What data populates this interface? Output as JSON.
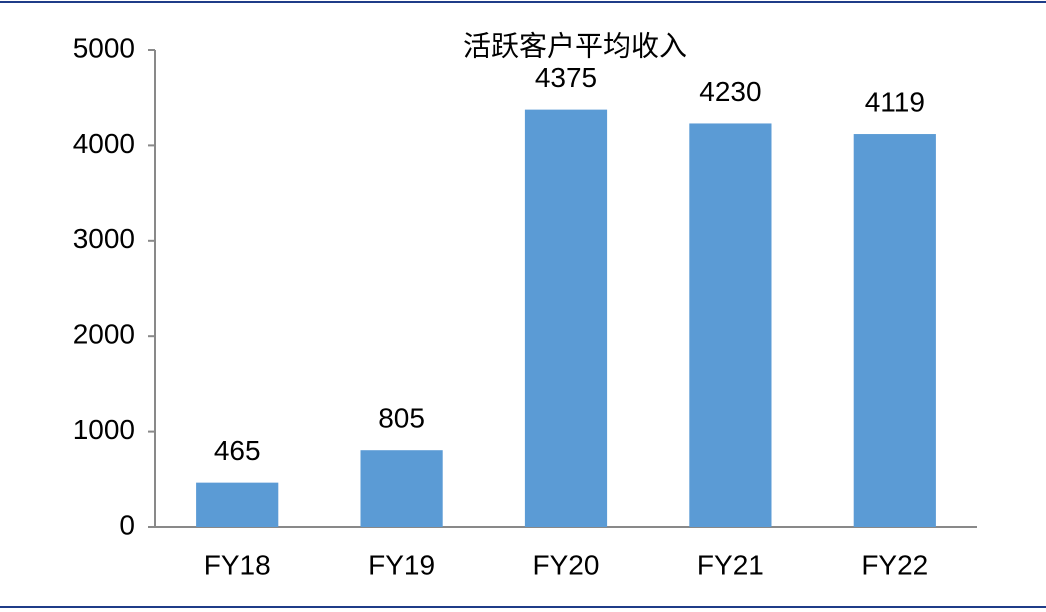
{
  "chart_data": {
    "type": "bar",
    "title": "活跃客户平均收入",
    "categories": [
      "FY18",
      "FY19",
      "FY20",
      "FY21",
      "FY22"
    ],
    "values": [
      465,
      805,
      4375,
      4230,
      4119
    ],
    "color": "#5b9bd5",
    "ylim": [
      0,
      5000
    ],
    "yticks": [
      0,
      1000,
      2000,
      3000,
      4000,
      5000
    ],
    "grid": false
  }
}
